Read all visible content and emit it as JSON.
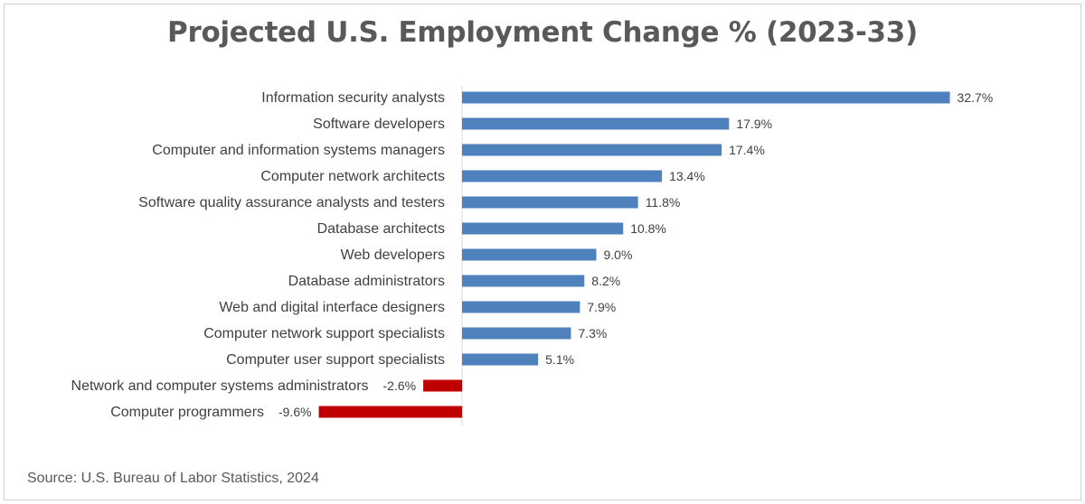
{
  "title": "Projected U.S. Employment Change % (2023-33)",
  "source": "Source: U.S. Bureau of Labor Statistics, 2024",
  "chart_data": {
    "type": "bar",
    "orientation": "horizontal",
    "title": "Projected U.S. Employment Change % (2023-33)",
    "xlabel": "",
    "ylabel": "",
    "grid": false,
    "legend": "none",
    "categories": [
      "Information security analysts",
      "Software developers",
      "Computer and information systems managers",
      "Computer network architects",
      "Software quality assurance analysts and testers",
      "Database architects",
      "Web developers",
      "Database administrators",
      "Web and digital interface designers",
      "Computer network support specialists",
      "Computer user support specialists",
      "Network and computer systems administrators",
      "Computer programmers"
    ],
    "values": [
      32.7,
      17.9,
      17.4,
      13.4,
      11.8,
      10.8,
      9.0,
      8.2,
      7.9,
      7.3,
      5.1,
      -2.6,
      -9.6
    ],
    "data_labels": [
      "32.7%",
      "17.9%",
      "17.4%",
      "13.4%",
      "11.8%",
      "10.8%",
      "9.0%",
      "8.2%",
      "7.9%",
      "7.3%",
      "5.1%",
      "-2.6%",
      "-9.6%"
    ],
    "colors": {
      "positive": "#4f81bd",
      "negative": "#c00000",
      "axis": "#d9d9d9"
    }
  }
}
